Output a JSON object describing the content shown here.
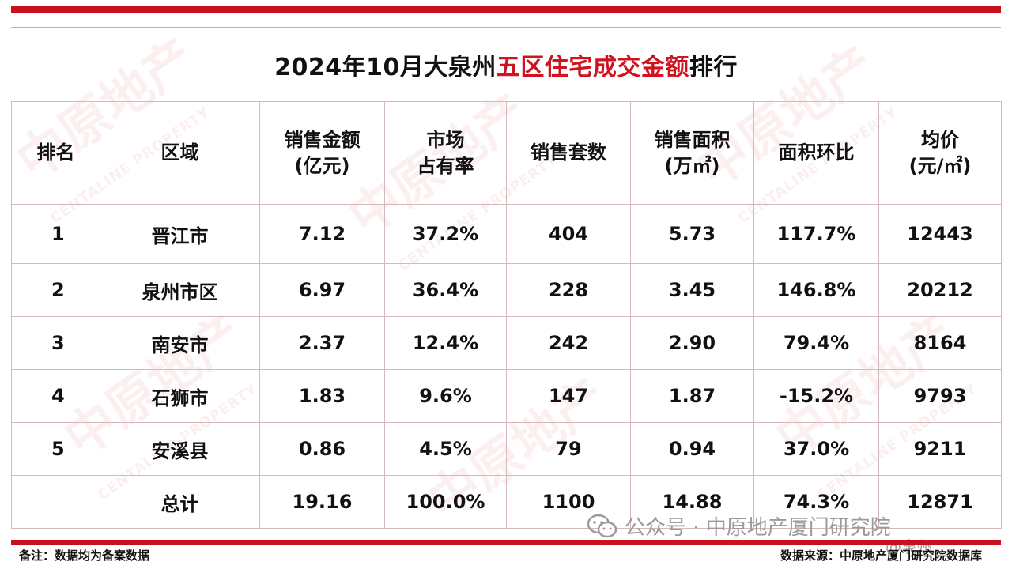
{
  "title": {
    "prefix": "2024年10月大泉州",
    "highlight": "五区住宅成交金额",
    "suffix": "排行"
  },
  "table": {
    "headers": {
      "rank": "排名",
      "region": "区域",
      "amount_1": "销售金额",
      "amount_2": "(亿元)",
      "share_1": "市场",
      "share_2": "占有率",
      "units": "销售套数",
      "area_1": "销售面积",
      "area_2": "(万㎡)",
      "mom": "面积环比",
      "price_1": "均价",
      "price_2": "(元/㎡)"
    },
    "rows": [
      {
        "rank": "1",
        "region": "晋江市",
        "amount": "7.12",
        "share": "37.2%",
        "units": "404",
        "area": "5.73",
        "mom": "117.7%",
        "price": "12443"
      },
      {
        "rank": "2",
        "region": "泉州市区",
        "amount": "6.97",
        "share": "36.4%",
        "units": "228",
        "area": "3.45",
        "mom": "146.8%",
        "price": "20212"
      },
      {
        "rank": "3",
        "region": "南安市",
        "amount": "2.37",
        "share": "12.4%",
        "units": "242",
        "area": "2.90",
        "mom": "79.4%",
        "price": "8164"
      },
      {
        "rank": "4",
        "region": "石狮市",
        "amount": "1.83",
        "share": "9.6%",
        "units": "147",
        "area": "1.87",
        "mom": "-15.2%",
        "price": "9793"
      },
      {
        "rank": "5",
        "region": "安溪县",
        "amount": "0.86",
        "share": "4.5%",
        "units": "79",
        "area": "0.94",
        "mom": "37.0%",
        "price": "9211"
      }
    ],
    "total": {
      "rank": "",
      "region": "总计",
      "amount": "19.16",
      "share": "100.0%",
      "units": "1100",
      "area": "14.88",
      "mom": "74.3%",
      "price": "12871"
    }
  },
  "footer": {
    "note": "备注：数据均为备案数据",
    "source": "数据来源：中原地产厦门研究院数据库"
  },
  "overlay": {
    "wechat_text": "公众号 · 中原地产厦门研究院",
    "weibo_text": "@泉州"
  },
  "watermark": {
    "brand_cn": "中原地产",
    "brand_en": "CENTALINE PROPERTY"
  },
  "colors": {
    "accent": "#c8101e",
    "highlight_text": "#d0141f",
    "grid": "#d4b8bb"
  }
}
